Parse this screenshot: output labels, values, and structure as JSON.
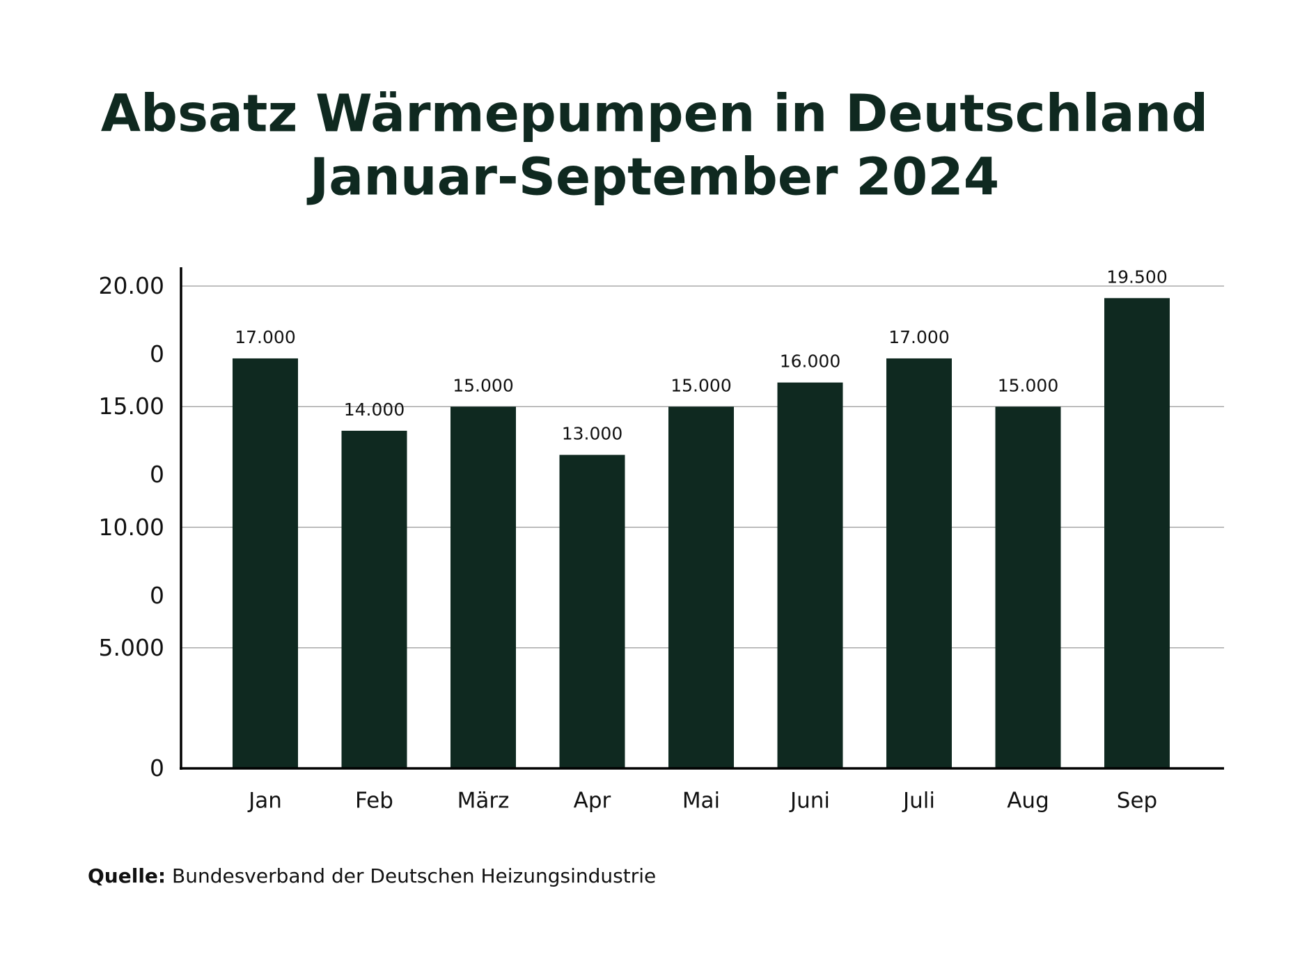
{
  "chart_data": {
    "type": "bar",
    "title": [
      "Absatz Wärmepumpen in Deutschland",
      "Januar-September 2024"
    ],
    "categories": [
      "Jan",
      "Feb",
      "März",
      "Apr",
      "Mai",
      "Juni",
      "Juli",
      "Aug",
      "Sep"
    ],
    "values": [
      17000,
      14000,
      15000,
      13000,
      15000,
      16000,
      17000,
      15000,
      19500
    ],
    "value_labels": [
      "17.000",
      "14.000",
      "15.000",
      "13.000",
      "15.000",
      "16.000",
      "17.000",
      "15.000",
      "19.500"
    ],
    "color": "#0f2920",
    "ylim": [
      0,
      20000
    ],
    "yticks": [
      {
        "value": 0,
        "label": "0"
      },
      {
        "value": 5000,
        "label": "5.000"
      },
      {
        "value": 10000,
        "label": "10.000"
      },
      {
        "value": 15000,
        "label": "15.000"
      },
      {
        "value": 20000,
        "label": "20.000"
      }
    ],
    "grid": true,
    "source_label": "Quelle:",
    "source_text": "Bundesverband der Deutschen Heizungsindustrie"
  }
}
